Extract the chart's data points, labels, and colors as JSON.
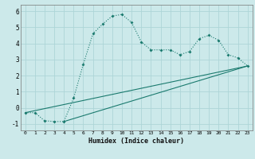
{
  "xlabel": "Humidex (Indice chaleur)",
  "bg_color": "#cce9ea",
  "grid_color": "#add5d7",
  "line_color": "#1a7a6e",
  "line1_x": [
    0,
    1,
    2,
    3,
    4,
    5,
    6,
    7,
    8,
    9,
    10,
    11,
    12,
    13,
    14,
    15,
    16,
    17,
    18,
    19,
    20,
    21,
    22,
    23
  ],
  "line1_y": [
    -0.3,
    -0.3,
    -0.8,
    -0.85,
    -0.85,
    0.6,
    2.7,
    4.6,
    5.2,
    5.7,
    5.8,
    5.3,
    4.1,
    3.6,
    3.6,
    3.6,
    3.3,
    3.5,
    4.3,
    4.5,
    4.2,
    3.3,
    3.1,
    2.6
  ],
  "line2_x": [
    0,
    23
  ],
  "line2_y": [
    -0.3,
    2.6
  ],
  "line3_x": [
    4,
    23
  ],
  "line3_y": [
    -0.85,
    2.6
  ],
  "ylim": [
    -1.4,
    6.4
  ],
  "xlim": [
    -0.5,
    23.5
  ],
  "yticks": [
    -1,
    0,
    1,
    2,
    3,
    4,
    5,
    6
  ],
  "xticks": [
    0,
    1,
    2,
    3,
    4,
    5,
    6,
    7,
    8,
    9,
    10,
    11,
    12,
    13,
    14,
    15,
    16,
    17,
    18,
    19,
    20,
    21,
    22,
    23
  ]
}
